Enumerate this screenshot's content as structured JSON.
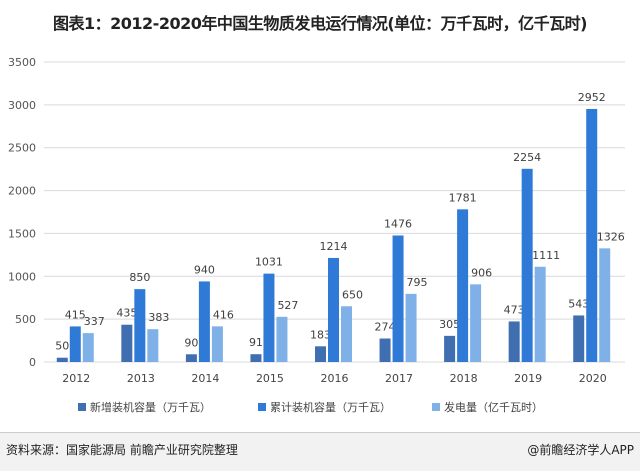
{
  "chart_data": {
    "type": "bar",
    "title": "图表1：2012-2020年中国生物质发电运行情况(单位：万千瓦时，亿千瓦时)",
    "categories": [
      "2012",
      "2013",
      "2014",
      "2015",
      "2016",
      "2017",
      "2018",
      "2019",
      "2020"
    ],
    "series": [
      {
        "name": "新增装机容量（万千瓦）",
        "color": "#3f6fb0",
        "values": [
          50,
          435,
          90,
          91,
          183,
          274,
          305,
          473,
          543
        ]
      },
      {
        "name": "累计装机容量（万千瓦）",
        "color": "#2e7ad6",
        "values": [
          415,
          850,
          940,
          1031,
          1214,
          1476,
          1781,
          2254,
          2952
        ]
      },
      {
        "name": "发电量（亿千瓦时）",
        "color": "#7fb0e8",
        "values": [
          337,
          383,
          416,
          527,
          650,
          795,
          906,
          1111,
          1326
        ]
      }
    ],
    "yticks": [
      "0",
      "500",
      "1000",
      "1500",
      "2000",
      "2500",
      "3000",
      "3500"
    ],
    "ylim": [
      0,
      3500
    ],
    "grid": true,
    "legend": "bottom"
  },
  "footer": {
    "source": "资料来源：国家能源局 前瞻产业研究院整理",
    "brand": "@前瞻经济学人APP"
  }
}
